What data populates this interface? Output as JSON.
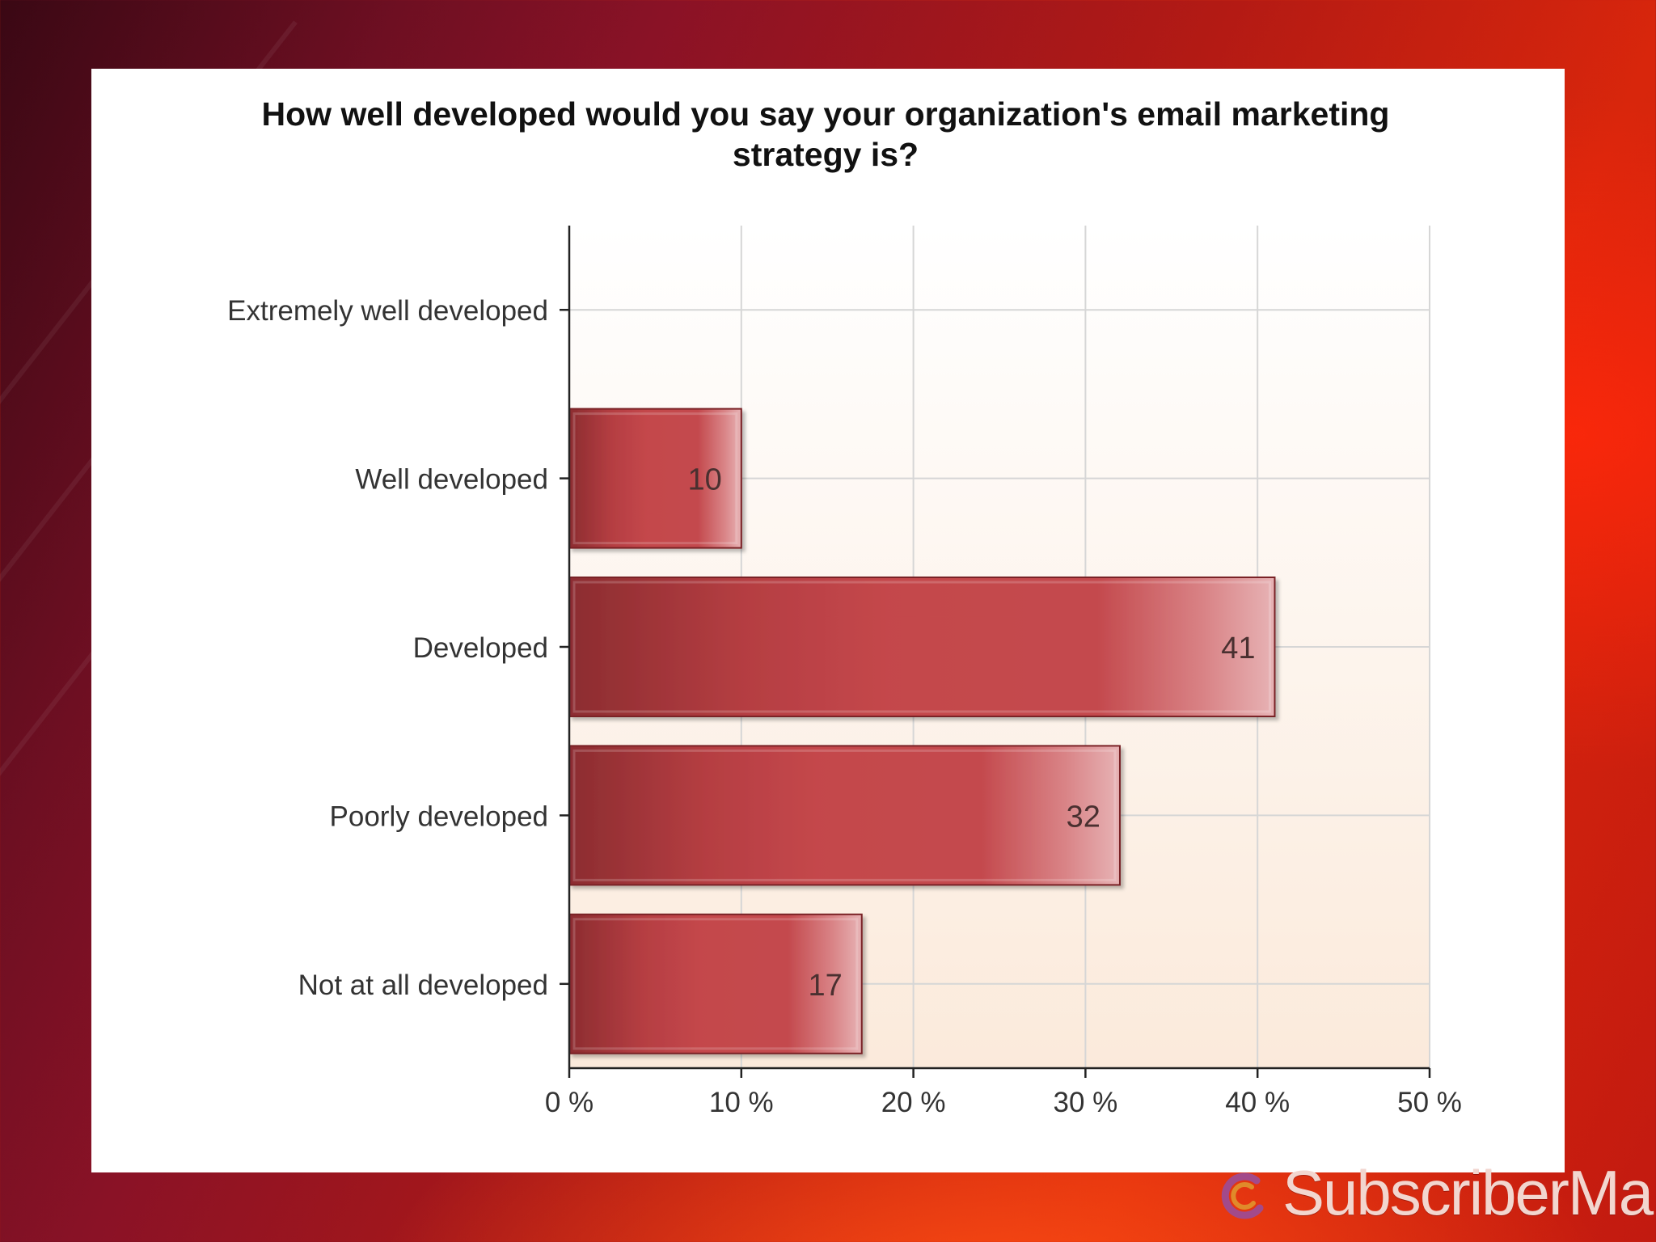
{
  "chart_data": {
    "type": "bar",
    "orientation": "horizontal",
    "title": "How well developed would you say your organization's email marketing strategy is?",
    "title_lines": [
      "How well developed would you say your organization's email marketing",
      "strategy is?"
    ],
    "categories": [
      "Extremely well developed",
      "Well developed",
      "Developed",
      "Poorly developed",
      "Not at all developed"
    ],
    "values": [
      0,
      10,
      41,
      32,
      17
    ],
    "data_labels": [
      "",
      "10",
      "41",
      "32",
      "17"
    ],
    "xlim": [
      0,
      50
    ],
    "x_ticks": [
      0,
      10,
      20,
      30,
      40,
      50
    ],
    "x_tick_labels": [
      "0 %",
      "10 %",
      "20 %",
      "30 %",
      "40 %",
      "50 %"
    ],
    "xlabel": "",
    "ylabel": "",
    "grid": true,
    "bar_color": "#c44448",
    "plot_background": [
      "#ffffff",
      "#fbeadb"
    ]
  },
  "brand": {
    "name": "SubscriberMail",
    "icon": "subscribermail-swirl-icon"
  }
}
